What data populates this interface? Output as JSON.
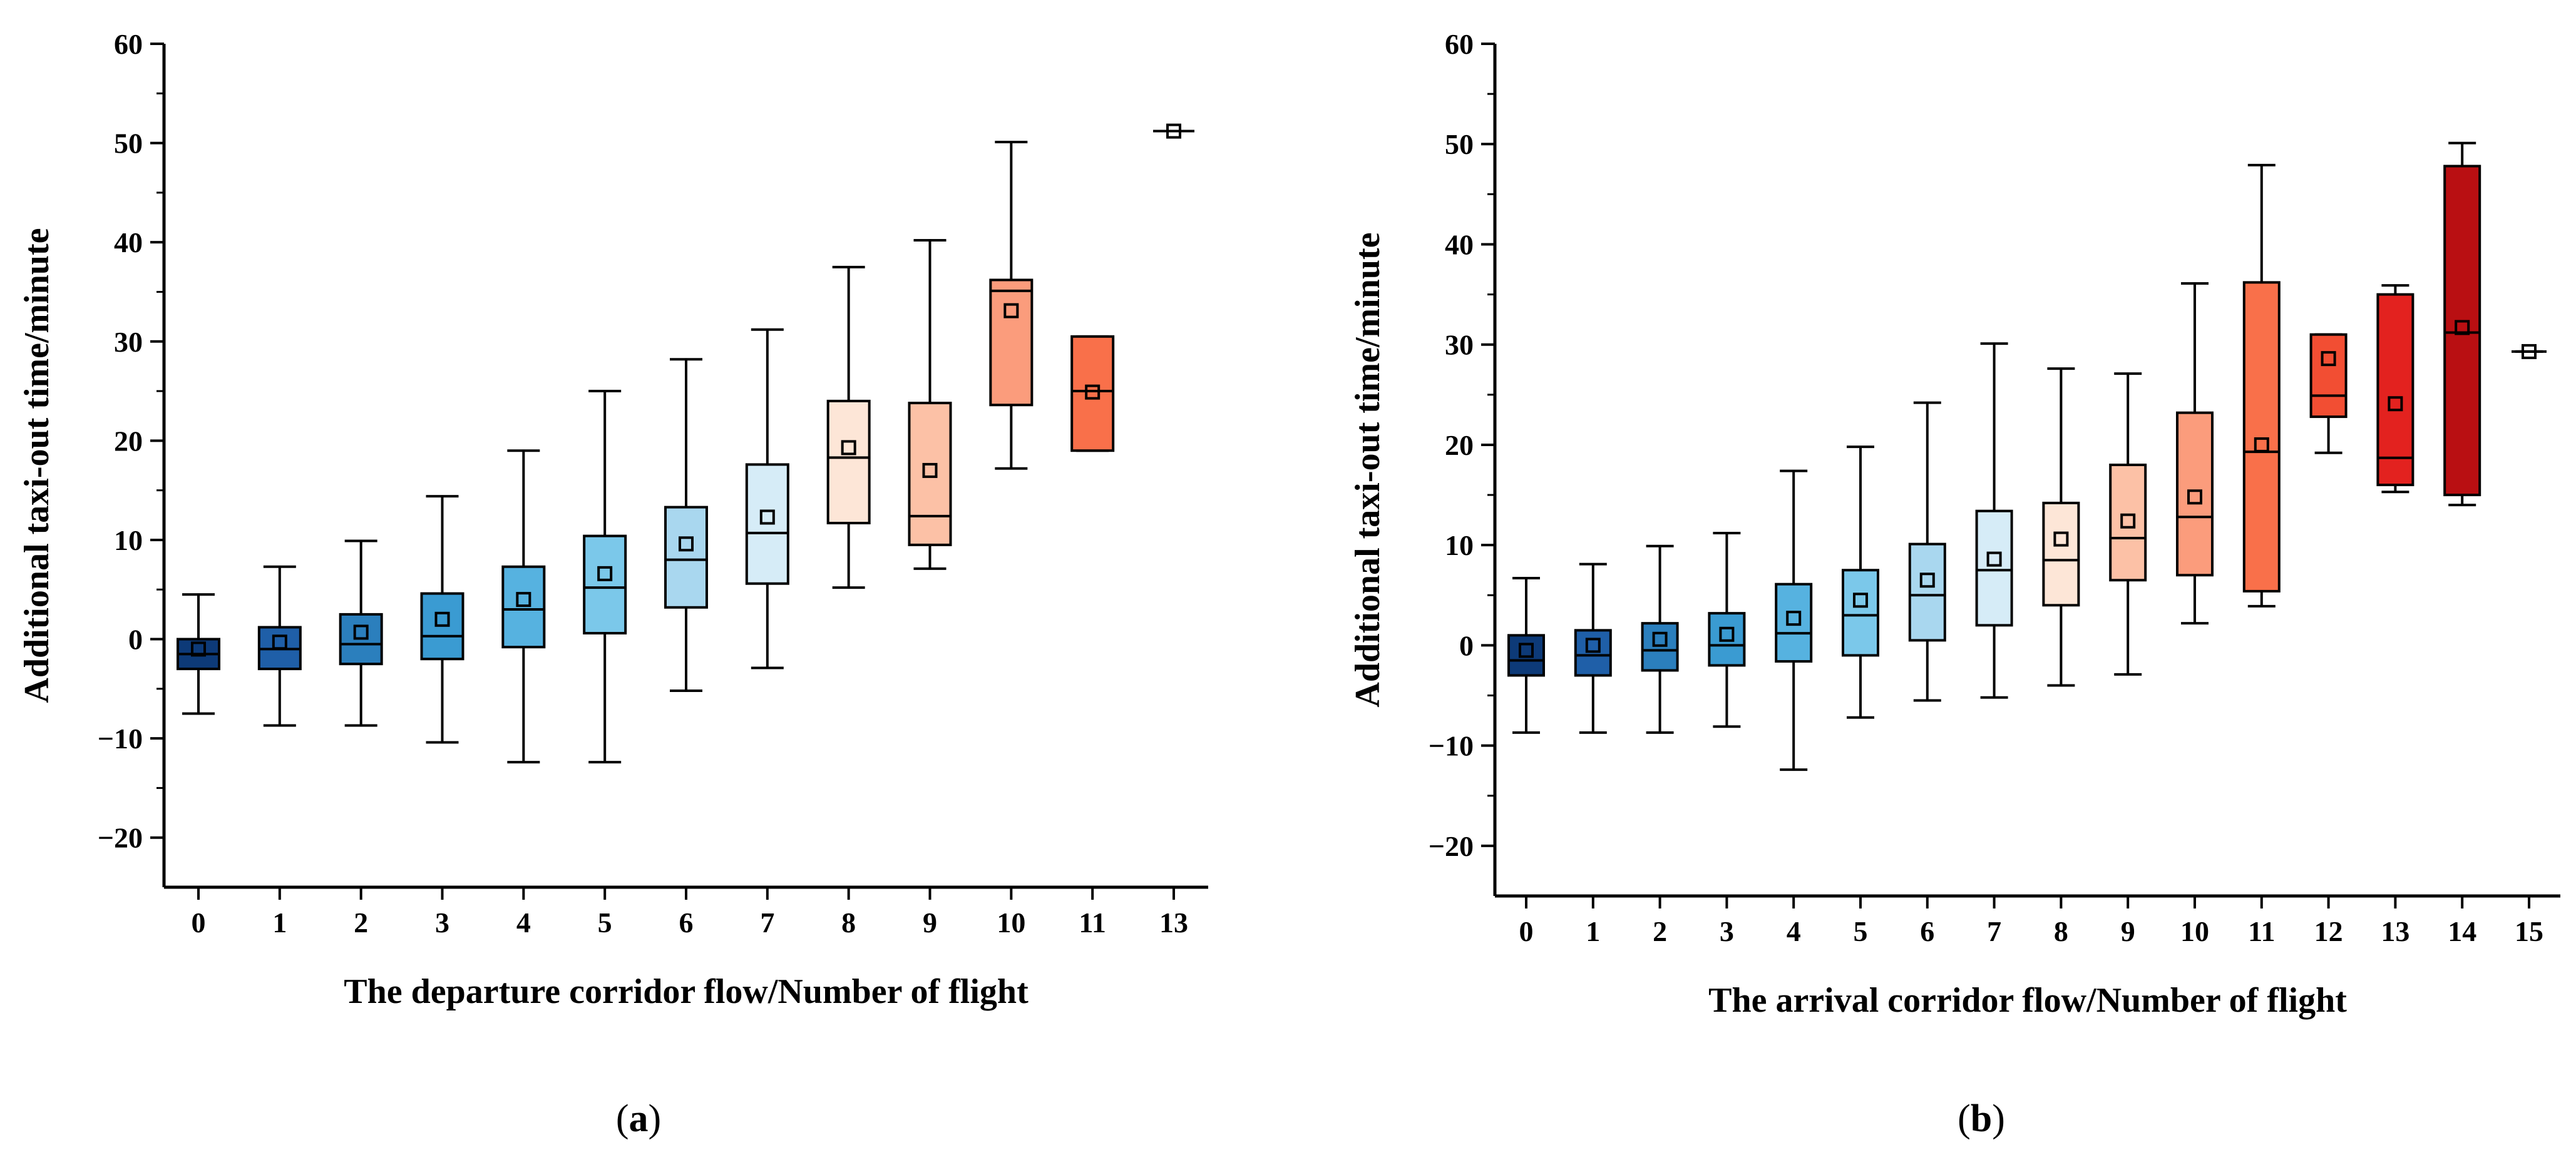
{
  "chart_data": [
    {
      "type": "box",
      "panel_label": "a",
      "xlabel": "The departure corridor flow/Number of flight",
      "ylabel": "Additional taxi-out time/minute",
      "ylim": [
        -25,
        60
      ],
      "yticks": [
        -20,
        -10,
        0,
        10,
        20,
        30,
        40,
        50,
        60
      ],
      "categories": [
        "0",
        "1",
        "2",
        "3",
        "4",
        "5",
        "6",
        "7",
        "8",
        "9",
        "10",
        "11",
        "13"
      ],
      "boxes": [
        {
          "x": "0",
          "min": -7.5,
          "q1": -3,
          "median": -1.5,
          "q3": 0,
          "max": 4.5,
          "mean": -1,
          "color": "#0d3a78"
        },
        {
          "x": "1",
          "min": -8.7,
          "q1": -3,
          "median": -1,
          "q3": 1.2,
          "max": 7.3,
          "mean": -0.3,
          "color": "#1f5fa8"
        },
        {
          "x": "2",
          "min": -8.7,
          "q1": -2.5,
          "median": -0.5,
          "q3": 2.5,
          "max": 9.9,
          "mean": 0.7,
          "color": "#2b7fbd"
        },
        {
          "x": "3",
          "min": -10.4,
          "q1": -2,
          "median": 0.3,
          "q3": 4.6,
          "max": 14.4,
          "mean": 2,
          "color": "#3a9bd2"
        },
        {
          "x": "4",
          "min": -12.4,
          "q1": -0.8,
          "median": 3,
          "q3": 7.3,
          "max": 19,
          "mean": 4,
          "color": "#56b2e0"
        },
        {
          "x": "5",
          "min": -12.4,
          "q1": 0.6,
          "median": 5.2,
          "q3": 10.4,
          "max": 25,
          "mean": 6.6,
          "color": "#7bc8ea"
        },
        {
          "x": "6",
          "min": -5.2,
          "q1": 3.2,
          "median": 8,
          "q3": 13.3,
          "max": 28.2,
          "mean": 9.6,
          "color": "#a9d7ef"
        },
        {
          "x": "7",
          "min": -2.9,
          "q1": 5.6,
          "median": 10.7,
          "q3": 17.6,
          "max": 31.2,
          "mean": 12.3,
          "color": "#d6ecf7"
        },
        {
          "x": "8",
          "min": 5.2,
          "q1": 11.7,
          "median": 18.3,
          "q3": 24,
          "max": 37.5,
          "mean": 19.3,
          "color": "#fde6d7"
        },
        {
          "x": "9",
          "min": 7.1,
          "q1": 9.5,
          "median": 12.4,
          "q3": 23.8,
          "max": 40.2,
          "mean": 17,
          "color": "#fcc1a6"
        },
        {
          "x": "10",
          "min": 17.2,
          "q1": 23.6,
          "median": 35.1,
          "q3": 36.2,
          "max": 50.1,
          "mean": 33.1,
          "color": "#fb9c7c"
        },
        {
          "x": "11",
          "min": 19,
          "q1": 19,
          "median": 25,
          "q3": 30.5,
          "max": 30.5,
          "mean": 24.9,
          "color": "#f9704a"
        },
        {
          "x": "13",
          "min": 51.2,
          "q1": 51.2,
          "median": 51.2,
          "q3": 51.2,
          "max": 51.2,
          "mean": 51.2,
          "color": "#e8492c"
        }
      ]
    },
    {
      "type": "box",
      "panel_label": "b",
      "xlabel": "The arrival corridor flow/Number of flight",
      "ylabel": "Additional taxi-out time/minute",
      "ylim": [
        -25,
        60
      ],
      "yticks": [
        -20,
        -10,
        0,
        10,
        20,
        30,
        40,
        50,
        60
      ],
      "categories": [
        "0",
        "1",
        "2",
        "3",
        "4",
        "5",
        "6",
        "7",
        "8",
        "9",
        "10",
        "11",
        "12",
        "13",
        "14",
        "15"
      ],
      "boxes": [
        {
          "x": "0",
          "min": -8.7,
          "q1": -3,
          "median": -1.5,
          "q3": 1,
          "max": 6.7,
          "mean": -0.5,
          "color": "#0d3a78"
        },
        {
          "x": "1",
          "min": -8.7,
          "q1": -3,
          "median": -1,
          "q3": 1.5,
          "max": 8.1,
          "mean": 0,
          "color": "#1f5fa8"
        },
        {
          "x": "2",
          "min": -8.7,
          "q1": -2.5,
          "median": -0.5,
          "q3": 2.2,
          "max": 9.9,
          "mean": 0.6,
          "color": "#2b7fbd"
        },
        {
          "x": "3",
          "min": -8.1,
          "q1": -2,
          "median": 0,
          "q3": 3.2,
          "max": 11.2,
          "mean": 1.1,
          "color": "#3a9bd2"
        },
        {
          "x": "4",
          "min": -12.4,
          "q1": -1.6,
          "median": 1.2,
          "q3": 6.1,
          "max": 17.4,
          "mean": 2.7,
          "color": "#56b2e0"
        },
        {
          "x": "5",
          "min": -7.2,
          "q1": -1,
          "median": 3,
          "q3": 7.5,
          "max": 19.8,
          "mean": 4.5,
          "color": "#7bc8ea"
        },
        {
          "x": "6",
          "min": -5.5,
          "q1": 0.5,
          "median": 5,
          "q3": 10.1,
          "max": 24.2,
          "mean": 6.5,
          "color": "#a9d7ef"
        },
        {
          "x": "7",
          "min": -5.2,
          "q1": 2,
          "median": 7.5,
          "q3": 13.4,
          "max": 30.1,
          "mean": 8.6,
          "color": "#d6ecf7"
        },
        {
          "x": "8",
          "min": -4,
          "q1": 4,
          "median": 8.5,
          "q3": 14.2,
          "max": 27.6,
          "mean": 10.6,
          "color": "#fde6d7"
        },
        {
          "x": "9",
          "min": -2.9,
          "q1": 6.5,
          "median": 10.7,
          "q3": 18,
          "max": 27.1,
          "mean": 12.4,
          "color": "#fcc1a6"
        },
        {
          "x": "10",
          "min": 2.2,
          "q1": 7,
          "median": 12.8,
          "q3": 23.2,
          "max": 36.1,
          "mean": 14.8,
          "color": "#fb9c7c"
        },
        {
          "x": "11",
          "min": 3.9,
          "q1": 5.4,
          "median": 19.3,
          "q3": 36.2,
          "max": 47.9,
          "mean": 20,
          "color": "#f9704a"
        },
        {
          "x": "12",
          "min": 19.2,
          "q1": 22.8,
          "median": 24.9,
          "q3": 31,
          "max": 31,
          "mean": 28.6,
          "color": "#f24e33"
        },
        {
          "x": "13",
          "min": 15.3,
          "q1": 16,
          "median": 18.7,
          "q3": 35,
          "max": 35.9,
          "mean": 24.1,
          "color": "#e3221f"
        },
        {
          "x": "14",
          "min": 14,
          "q1": 15,
          "median": 31.2,
          "q3": 47.8,
          "max": 50.1,
          "mean": 31.7,
          "color": "#b90f12"
        },
        {
          "x": "15",
          "min": 29.3,
          "q1": 29.3,
          "median": 29.3,
          "q3": 29.3,
          "max": 29.3,
          "mean": 29.3,
          "color": "#e8492c"
        }
      ]
    }
  ]
}
